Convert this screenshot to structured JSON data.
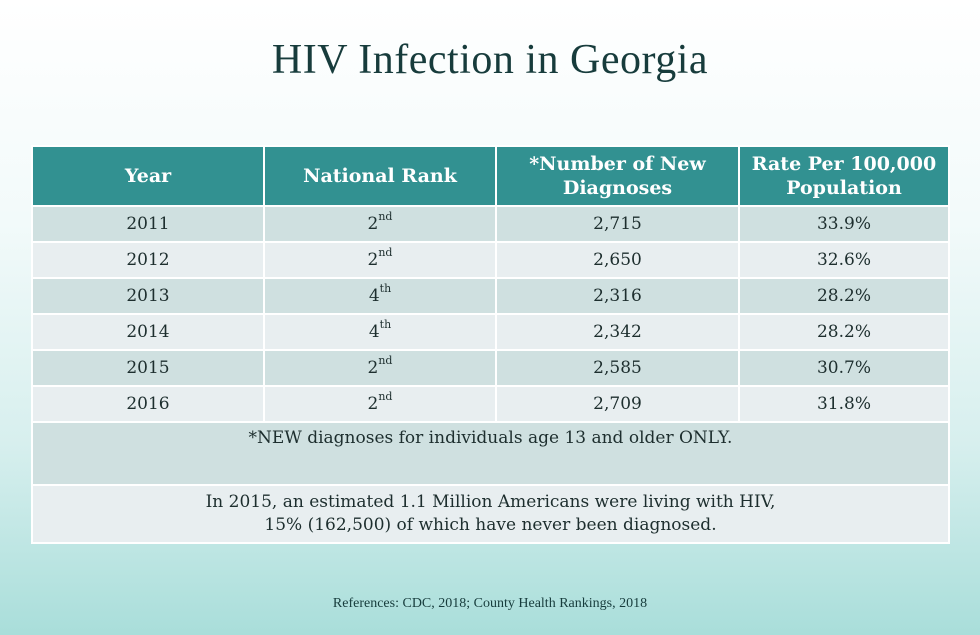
{
  "title": "HIV Infection in Georgia",
  "table": {
    "headers": [
      "Year",
      "National Rank",
      "*Number of New Diagnoses",
      "Rate Per 100,000 Population"
    ],
    "rows": [
      {
        "year": "2011",
        "rank": "2",
        "rank_suffix": "nd",
        "diagnoses": "2,715",
        "rate": "33.9%"
      },
      {
        "year": "2012",
        "rank": "2",
        "rank_suffix": "nd",
        "diagnoses": "2,650",
        "rate": "32.6%"
      },
      {
        "year": "2013",
        "rank": "4",
        "rank_suffix": "th",
        "diagnoses": "2,316",
        "rate": "28.2%"
      },
      {
        "year": "2014",
        "rank": "4",
        "rank_suffix": "th",
        "diagnoses": "2,342",
        "rate": "28.2%"
      },
      {
        "year": "2015",
        "rank": "2",
        "rank_suffix": "nd",
        "diagnoses": "2,585",
        "rate": "30.7%"
      },
      {
        "year": "2016",
        "rank": "2",
        "rank_suffix": "nd",
        "diagnoses": "2,709",
        "rate": "31.8%"
      }
    ],
    "note": "*NEW diagnoses for individuals age 13 and older ONLY.",
    "estimate_line1": "In 2015, an estimated 1.1 Million Americans were living with HIV,",
    "estimate_line2": "15% (162,500) of which have never been diagnosed."
  },
  "references": "References: CDC, 2018; County Health Rankings, 2018",
  "colors": {
    "header_bg": "#329191",
    "row_odd": "#cfe0e0",
    "row_even": "#e8eef0",
    "title_text": "#173c3c"
  }
}
